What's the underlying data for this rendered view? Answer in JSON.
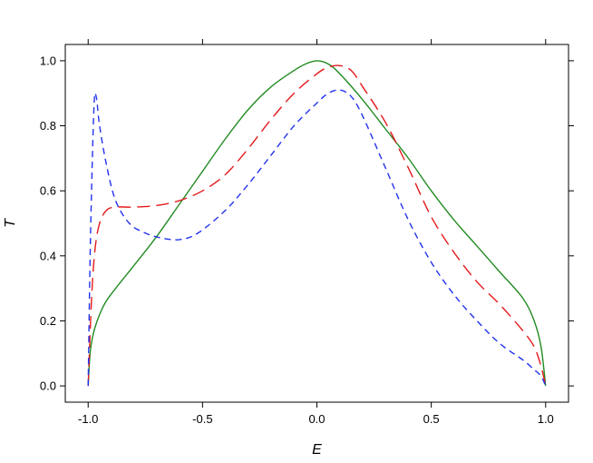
{
  "chart_data": {
    "type": "line",
    "title": "",
    "xlabel": "E",
    "ylabel": "T",
    "xlim": [
      -1.1,
      1.1
    ],
    "ylim": [
      -0.05,
      1.05
    ],
    "x_ticks": [
      "-1.0",
      "-0.5",
      "0.0",
      "0.5",
      "1.0"
    ],
    "y_ticks": [
      "0.0",
      "0.2",
      "0.4",
      "0.6",
      "0.8",
      "1.0"
    ],
    "grid": false,
    "legend": "none",
    "series": [
      {
        "color": "#228B22",
        "style": "solid",
        "x": [
          -1.0,
          -0.99,
          -0.97,
          -0.93,
          -0.88,
          -0.8,
          -0.7,
          -0.6,
          -0.5,
          -0.4,
          -0.3,
          -0.2,
          -0.1,
          -0.05,
          0.0,
          0.05,
          0.1,
          0.2,
          0.3,
          0.4,
          0.5,
          0.6,
          0.7,
          0.8,
          0.9,
          0.95,
          0.98,
          1.0
        ],
        "y": [
          0.0,
          0.11,
          0.18,
          0.25,
          0.3,
          0.37,
          0.46,
          0.56,
          0.66,
          0.76,
          0.85,
          0.92,
          0.97,
          0.99,
          1.0,
          0.99,
          0.96,
          0.88,
          0.79,
          0.7,
          0.6,
          0.51,
          0.43,
          0.35,
          0.27,
          0.2,
          0.12,
          0.0
        ]
      },
      {
        "color": "#E41A1C",
        "style": "long-dash",
        "x": [
          -1.0,
          -0.985,
          -0.97,
          -0.95,
          -0.92,
          -0.88,
          -0.8,
          -0.7,
          -0.6,
          -0.5,
          -0.4,
          -0.3,
          -0.2,
          -0.1,
          0.0,
          0.05,
          0.1,
          0.15,
          0.2,
          0.3,
          0.4,
          0.5,
          0.6,
          0.7,
          0.8,
          0.9,
          0.95,
          0.98,
          1.0
        ],
        "y": [
          0.0,
          0.27,
          0.42,
          0.5,
          0.54,
          0.55,
          0.55,
          0.555,
          0.57,
          0.6,
          0.65,
          0.73,
          0.82,
          0.9,
          0.96,
          0.98,
          0.985,
          0.97,
          0.92,
          0.81,
          0.67,
          0.52,
          0.41,
          0.32,
          0.25,
          0.17,
          0.12,
          0.06,
          0.0
        ]
      },
      {
        "color": "#2233EE",
        "style": "short-dash",
        "x": [
          -1.0,
          -0.99,
          -0.975,
          -0.965,
          -0.95,
          -0.92,
          -0.88,
          -0.82,
          -0.75,
          -0.68,
          -0.6,
          -0.52,
          -0.4,
          -0.3,
          -0.2,
          -0.1,
          0.0,
          0.05,
          0.1,
          0.15,
          0.2,
          0.3,
          0.4,
          0.5,
          0.6,
          0.7,
          0.8,
          0.9,
          0.95,
          0.98,
          1.0
        ],
        "y": [
          0.0,
          0.45,
          0.85,
          0.89,
          0.8,
          0.68,
          0.57,
          0.5,
          0.47,
          0.455,
          0.45,
          0.47,
          0.54,
          0.62,
          0.71,
          0.8,
          0.87,
          0.9,
          0.91,
          0.89,
          0.83,
          0.67,
          0.51,
          0.38,
          0.28,
          0.2,
          0.13,
          0.08,
          0.05,
          0.03,
          0.0
        ]
      }
    ]
  }
}
